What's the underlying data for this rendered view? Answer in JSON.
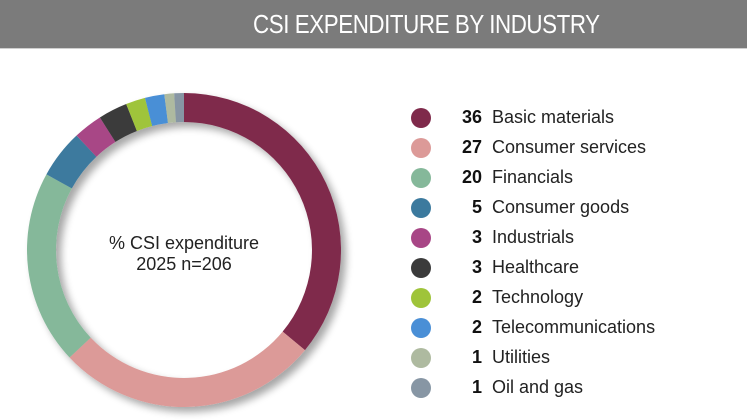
{
  "header": {
    "title": "CSI EXPENDITURE BY INDUSTRY"
  },
  "chart_data": {
    "type": "pie",
    "variant": "donut",
    "title": "CSI EXPENDITURE BY INDUSTRY",
    "center_label": [
      "% CSI expenditure",
      "2025 n=206"
    ],
    "unit": "%",
    "start": "top",
    "direction": "clockwise",
    "legend_position": "right",
    "categories": [
      "Basic materials",
      "Consumer services",
      "Financials",
      "Consumer goods",
      "Industrials",
      "Healthcare",
      "Technology",
      "Telecommunications",
      "Utilities",
      "Oil and gas"
    ],
    "values": [
      36,
      27,
      20,
      5,
      3,
      3,
      2,
      2,
      1,
      1
    ],
    "colors": [
      "#7f2a4b",
      "#dc9a98",
      "#85b89a",
      "#3c7a9e",
      "#a84686",
      "#3b3b3b",
      "#9fc43a",
      "#4a8fd6",
      "#aebaa0",
      "#8796a4"
    ]
  }
}
